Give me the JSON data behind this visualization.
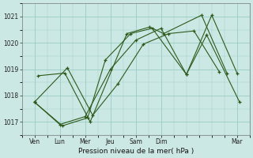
{
  "xlabel": "Pression niveau de la mer( hPa )",
  "bg_color": "#cce8e4",
  "grid_color": "#99ccc6",
  "line_color": "#2d5a1b",
  "xlim": [
    0,
    9
  ],
  "ylim": [
    1016.5,
    1021.5
  ],
  "yticks": [
    1017,
    1018,
    1019,
    1020,
    1021
  ],
  "xtick_positions": [
    0.5,
    1.5,
    2.5,
    3.5,
    4.5,
    5.5,
    8.5
  ],
  "xtick_labels": [
    "Ven",
    "Lun",
    "Mer",
    "Jeu",
    "Sam",
    "Dim",
    "Mar"
  ],
  "lines": [
    {
      "x": [
        0.5,
        1.5,
        2.5,
        3.5,
        4.5,
        5.5,
        6.5,
        7.5,
        8.5
      ],
      "y": [
        1017.75,
        1016.9,
        1017.2,
        1019.0,
        1020.1,
        1020.55,
        1018.8,
        1021.05,
        1018.85
      ]
    },
    {
      "x": [
        0.5,
        1.8,
        2.8,
        3.8,
        4.8,
        5.8,
        6.8,
        7.8
      ],
      "y": [
        1017.75,
        1019.05,
        1017.25,
        1018.45,
        1019.95,
        1020.35,
        1020.45,
        1018.9
      ]
    },
    {
      "x": [
        0.5,
        1.6,
        2.6,
        3.3,
        4.3,
        5.15,
        6.5,
        7.3,
        8.6
      ],
      "y": [
        1017.75,
        1016.85,
        1017.15,
        1019.35,
        1020.35,
        1020.55,
        1018.8,
        1020.3,
        1017.75
      ]
    },
    {
      "x": [
        0.65,
        1.7,
        2.7,
        4.15,
        5.05,
        5.6,
        7.1,
        8.1
      ],
      "y": [
        1018.75,
        1018.85,
        1017.0,
        1020.35,
        1020.6,
        1020.35,
        1021.05,
        1018.85
      ]
    }
  ]
}
